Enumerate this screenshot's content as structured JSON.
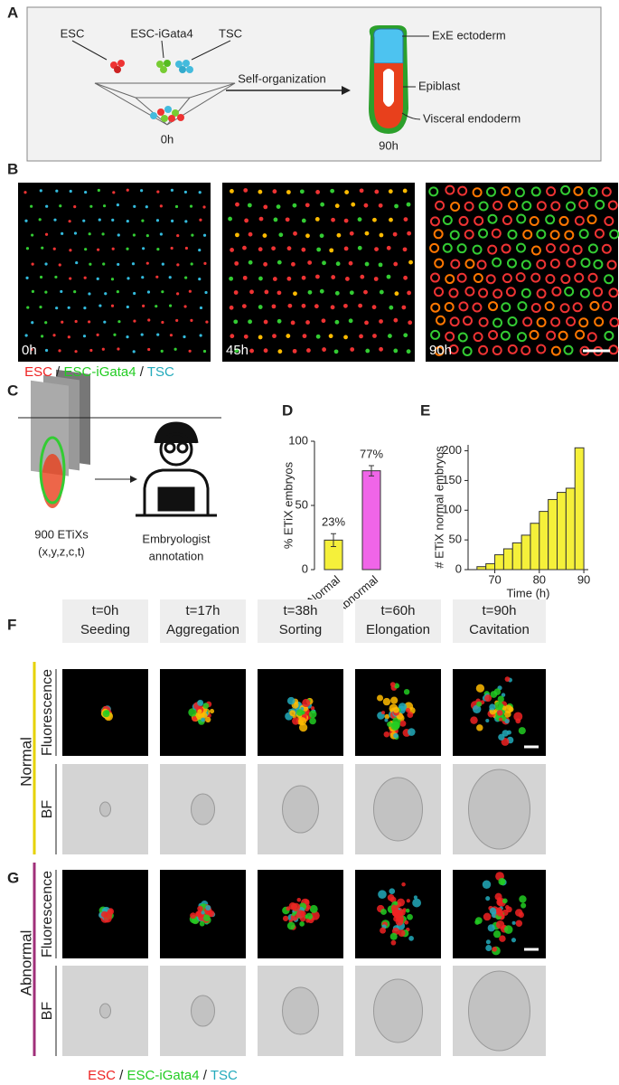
{
  "panel_a": {
    "label": "A",
    "cells": [
      "ESC",
      "ESC-iGata4",
      "TSC"
    ],
    "start": "0h",
    "arrow": "Self-organization",
    "end": "90h",
    "parts": [
      "ExE ectoderm",
      "Epiblast",
      "Visceral endoderm"
    ]
  },
  "panel_b": {
    "label": "B",
    "times": [
      "0h",
      "45h",
      "90h"
    ],
    "legend": [
      "ESC",
      "ESC-iGata4",
      "TSC"
    ],
    "separator": "/"
  },
  "panel_c": {
    "label": "C",
    "stack": [
      "900 ETiXs",
      "(x,y,z,c,t)"
    ],
    "annotator": [
      "Embryologist",
      "annotation"
    ]
  },
  "chart_data": [
    {
      "type": "bar",
      "label": "D",
      "y_label": "% ETiX embryos",
      "categories": [
        "Normal",
        "Abnormal"
      ],
      "values": [
        23,
        77
      ],
      "value_labels": [
        "23%",
        "77%"
      ],
      "errors": [
        5,
        4
      ],
      "colors": [
        "#f5f03a",
        "#f065e8"
      ],
      "ylim": [
        0,
        100
      ],
      "yticks": [
        0,
        50,
        100
      ]
    },
    {
      "type": "histogram",
      "label": "E",
      "x_label": "Time (h)",
      "y_label": "# ETiX normal embryos",
      "bins": [
        66,
        68,
        70,
        72,
        74,
        76,
        78,
        80,
        82,
        84,
        86,
        88,
        90
      ],
      "values": [
        5,
        10,
        25,
        35,
        45,
        58,
        78,
        98,
        118,
        130,
        137,
        205
      ],
      "color": "#f5f03a",
      "xlim": [
        64,
        91
      ],
      "xticks": [
        70,
        80,
        90
      ],
      "ylim": [
        0,
        210
      ],
      "yticks": [
        0,
        50,
        100,
        150,
        200
      ]
    }
  ],
  "panel_f": {
    "label": "F",
    "group": "Normal",
    "rows": [
      "Fluorescence",
      "BF"
    ],
    "timepoints": [
      {
        "time": "t=0h",
        "stage": "Seeding"
      },
      {
        "time": "t=17h",
        "stage": "Aggregation"
      },
      {
        "time": "t=38h",
        "stage": "Sorting"
      },
      {
        "time": "t=60h",
        "stage": "Elongation"
      },
      {
        "time": "t=90h",
        "stage": "Cavitation"
      }
    ]
  },
  "panel_g": {
    "label": "G",
    "group": "Abnormal",
    "rows": [
      "Fluorescence",
      "BF"
    ],
    "legend": [
      "ESC",
      "ESC-iGata4",
      "TSC"
    ],
    "separator": "/"
  }
}
